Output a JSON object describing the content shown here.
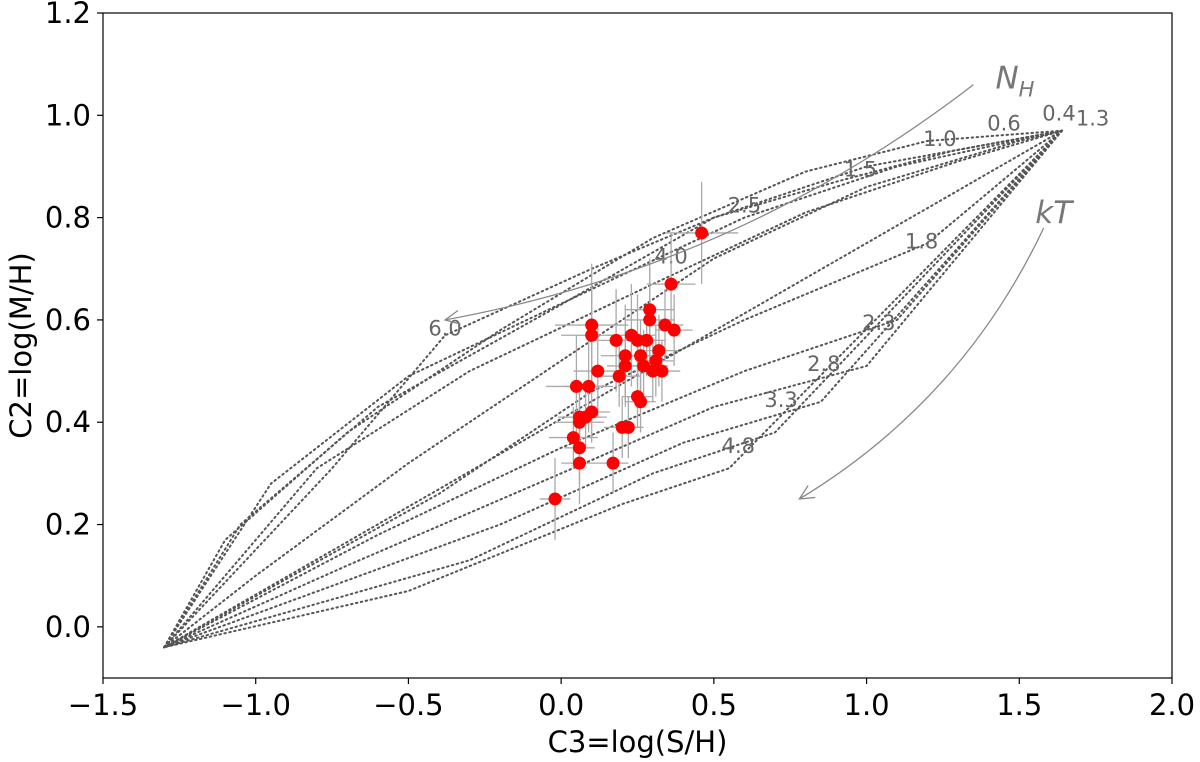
{
  "chart_data": {
    "type": "scatter",
    "title": "",
    "xlabel": "C3=log(S/H)",
    "ylabel": "C2=log(M/H)",
    "xlim": [
      -1.5,
      2.0
    ],
    "ylim": [
      -0.1,
      1.2
    ],
    "x_ticks": [
      -1.5,
      -1.0,
      -0.5,
      0.0,
      0.5,
      1.0,
      1.5,
      2.0
    ],
    "x_tick_labels": [
      "−1.5",
      "−1.0",
      "−0.5",
      "0.0",
      "0.5",
      "1.0",
      "1.5",
      "2.0"
    ],
    "y_ticks": [
      0.0,
      0.2,
      0.4,
      0.6,
      0.8,
      1.0,
      1.2
    ],
    "y_tick_labels": [
      "0.0",
      "0.2",
      "0.4",
      "0.6",
      "0.8",
      "1.0",
      "1.2"
    ],
    "grid": false,
    "model_grid": {
      "nh_values": [
        "0.4",
        "0.6",
        "1.0",
        "1.5",
        "2.5",
        "4.0",
        "6.0"
      ],
      "kt_values": [
        "1.3",
        "1.8",
        "2.3",
        "2.8",
        "3.3",
        "4.8"
      ],
      "nh_lines": [
        [
          [
            -1.3,
            -0.04
          ],
          [
            1.64,
            0.97
          ]
        ],
        [
          [
            -1.3,
            -0.04
          ],
          [
            -1.0,
            0.1
          ],
          [
            -0.5,
            0.32
          ],
          [
            0.0,
            0.52
          ],
          [
            0.5,
            0.72
          ],
          [
            1.0,
            0.86
          ],
          [
            1.5,
            0.95
          ],
          [
            1.64,
            0.97
          ]
        ],
        [
          [
            -1.3,
            -0.04
          ],
          [
            -1.1,
            0.17
          ],
          [
            -0.7,
            0.38
          ],
          [
            -0.2,
            0.58
          ],
          [
            0.3,
            0.76
          ],
          [
            0.8,
            0.89
          ],
          [
            1.2,
            0.95
          ],
          [
            1.64,
            0.97
          ]
        ],
        [
          [
            -1.3,
            -0.04
          ],
          [
            -1.05,
            0.2
          ],
          [
            -0.6,
            0.43
          ],
          [
            0.0,
            0.63
          ],
          [
            0.5,
            0.8
          ],
          [
            1.0,
            0.9
          ],
          [
            1.64,
            0.97
          ]
        ],
        [
          [
            -1.3,
            -0.04
          ],
          [
            -0.95,
            0.28
          ],
          [
            -0.5,
            0.49
          ],
          [
            0.1,
            0.66
          ],
          [
            0.6,
            0.8
          ],
          [
            1.1,
            0.9
          ],
          [
            1.64,
            0.97
          ]
        ],
        [
          [
            -1.3,
            -0.04
          ],
          [
            -0.8,
            0.31
          ],
          [
            -0.3,
            0.5
          ],
          [
            0.3,
            0.67
          ],
          [
            0.8,
            0.81
          ],
          [
            1.3,
            0.91
          ],
          [
            1.64,
            0.97
          ]
        ]
      ],
      "nh_label_points": [
        [
          1.63,
          0.99
        ],
        [
          1.45,
          0.97
        ],
        [
          1.24,
          0.94
        ],
        [
          0.98,
          0.88
        ],
        [
          0.6,
          0.81
        ],
        [
          0.36,
          0.71
        ],
        [
          -0.38,
          0.57
        ]
      ],
      "kt_label_points": [
        [
          1.74,
          0.98
        ],
        [
          1.18,
          0.74
        ],
        [
          1.04,
          0.58
        ],
        [
          0.86,
          0.5
        ],
        [
          0.72,
          0.43
        ],
        [
          0.58,
          0.34
        ]
      ],
      "outer_nh_line": [
        [
          1.64,
          0.97
        ],
        [
          1.28,
          0.93
        ],
        [
          0.9,
          0.87
        ],
        [
          0.5,
          0.8
        ],
        [
          0.1,
          0.7
        ],
        [
          -0.38,
          0.57
        ],
        [
          -0.75,
          0.31
        ],
        [
          -1.3,
          -0.04
        ]
      ],
      "kt_lines": [
        [
          [
            1.64,
            0.97
          ],
          [
            1.2,
            0.75
          ],
          [
            0.6,
            0.6
          ],
          [
            0.1,
            0.46
          ],
          [
            -0.4,
            0.26
          ],
          [
            -1.3,
            -0.04
          ]
        ],
        [
          [
            1.64,
            0.97
          ],
          [
            1.1,
            0.6
          ],
          [
            0.6,
            0.5
          ],
          [
            0.0,
            0.35
          ],
          [
            -0.6,
            0.18
          ],
          [
            -1.3,
            -0.04
          ]
        ],
        [
          [
            1.64,
            0.97
          ],
          [
            1.0,
            0.51
          ],
          [
            0.5,
            0.43
          ],
          [
            0.0,
            0.3
          ],
          [
            -0.7,
            0.12
          ],
          [
            -1.3,
            -0.04
          ]
        ],
        [
          [
            1.64,
            0.97
          ],
          [
            0.85,
            0.44
          ],
          [
            0.4,
            0.36
          ],
          [
            -0.2,
            0.2
          ],
          [
            -1.3,
            -0.04
          ]
        ],
        [
          [
            1.64,
            0.97
          ],
          [
            0.7,
            0.38
          ],
          [
            0.3,
            0.3
          ],
          [
            -0.3,
            0.13
          ],
          [
            -1.3,
            -0.04
          ]
        ],
        [
          [
            1.64,
            0.97
          ],
          [
            0.55,
            0.31
          ],
          [
            0.2,
            0.24
          ],
          [
            -0.5,
            0.07
          ],
          [
            -1.3,
            -0.04
          ]
        ]
      ]
    },
    "annotations": [
      {
        "text": "N",
        "sub": "H",
        "arrow_from": [
          1.35,
          1.06
        ],
        "arrow_to": [
          -0.38,
          0.6
        ]
      },
      {
        "text": "kT",
        "arrow_from": [
          1.58,
          0.78
        ],
        "arrow_to": [
          0.78,
          0.25
        ]
      }
    ],
    "points": [
      {
        "x": -0.02,
        "y": 0.25,
        "xerr": 0.05,
        "yerr": 0.08
      },
      {
        "x": 0.04,
        "y": 0.37,
        "xerr": 0.08,
        "yerr": 0.06
      },
      {
        "x": 0.05,
        "y": 0.47,
        "xerr": 0.1,
        "yerr": 0.1
      },
      {
        "x": 0.06,
        "y": 0.4,
        "xerr": 0.08,
        "yerr": 0.06
      },
      {
        "x": 0.06,
        "y": 0.41,
        "xerr": 0.07,
        "yerr": 0.05
      },
      {
        "x": 0.06,
        "y": 0.32,
        "xerr": 0.06,
        "yerr": 0.08
      },
      {
        "x": 0.06,
        "y": 0.35,
        "xerr": 0.05,
        "yerr": 0.07
      },
      {
        "x": 0.08,
        "y": 0.41,
        "xerr": 0.07,
        "yerr": 0.06
      },
      {
        "x": 0.09,
        "y": 0.47,
        "xerr": 0.08,
        "yerr": 0.09
      },
      {
        "x": 0.1,
        "y": 0.42,
        "xerr": 0.06,
        "yerr": 0.06
      },
      {
        "x": 0.1,
        "y": 0.57,
        "xerr": 0.1,
        "yerr": 0.1
      },
      {
        "x": 0.1,
        "y": 0.59,
        "xerr": 0.12,
        "yerr": 0.12
      },
      {
        "x": 0.12,
        "y": 0.5,
        "xerr": 0.08,
        "yerr": 0.09
      },
      {
        "x": 0.17,
        "y": 0.32,
        "xerr": 0.05,
        "yerr": 0.06
      },
      {
        "x": 0.18,
        "y": 0.56,
        "xerr": 0.08,
        "yerr": 0.1
      },
      {
        "x": 0.19,
        "y": 0.49,
        "xerr": 0.07,
        "yerr": 0.06
      },
      {
        "x": 0.2,
        "y": 0.39,
        "xerr": 0.06,
        "yerr": 0.06
      },
      {
        "x": 0.21,
        "y": 0.53,
        "xerr": 0.08,
        "yerr": 0.1
      },
      {
        "x": 0.21,
        "y": 0.51,
        "xerr": 0.06,
        "yerr": 0.07
      },
      {
        "x": 0.22,
        "y": 0.39,
        "xerr": 0.05,
        "yerr": 0.06
      },
      {
        "x": 0.23,
        "y": 0.57,
        "xerr": 0.08,
        "yerr": 0.1
      },
      {
        "x": 0.25,
        "y": 0.56,
        "xerr": 0.07,
        "yerr": 0.09
      },
      {
        "x": 0.25,
        "y": 0.45,
        "xerr": 0.05,
        "yerr": 0.06
      },
      {
        "x": 0.26,
        "y": 0.44,
        "xerr": 0.05,
        "yerr": 0.06
      },
      {
        "x": 0.26,
        "y": 0.53,
        "xerr": 0.06,
        "yerr": 0.07
      },
      {
        "x": 0.27,
        "y": 0.51,
        "xerr": 0.08,
        "yerr": 0.07
      },
      {
        "x": 0.28,
        "y": 0.56,
        "xerr": 0.06,
        "yerr": 0.07
      },
      {
        "x": 0.29,
        "y": 0.6,
        "xerr": 0.08,
        "yerr": 0.1
      },
      {
        "x": 0.29,
        "y": 0.62,
        "xerr": 0.08,
        "yerr": 0.1
      },
      {
        "x": 0.3,
        "y": 0.5,
        "xerr": 0.05,
        "yerr": 0.06
      },
      {
        "x": 0.31,
        "y": 0.52,
        "xerr": 0.06,
        "yerr": 0.07
      },
      {
        "x": 0.32,
        "y": 0.54,
        "xerr": 0.06,
        "yerr": 0.07
      },
      {
        "x": 0.33,
        "y": 0.5,
        "xerr": 0.06,
        "yerr": 0.06
      },
      {
        "x": 0.34,
        "y": 0.59,
        "xerr": 0.06,
        "yerr": 0.07
      },
      {
        "x": 0.36,
        "y": 0.67,
        "xerr": 0.08,
        "yerr": 0.1
      },
      {
        "x": 0.37,
        "y": 0.58,
        "xerr": 0.06,
        "yerr": 0.07
      },
      {
        "x": 0.46,
        "y": 0.77,
        "xerr": 0.12,
        "yerr": 0.1
      }
    ]
  }
}
